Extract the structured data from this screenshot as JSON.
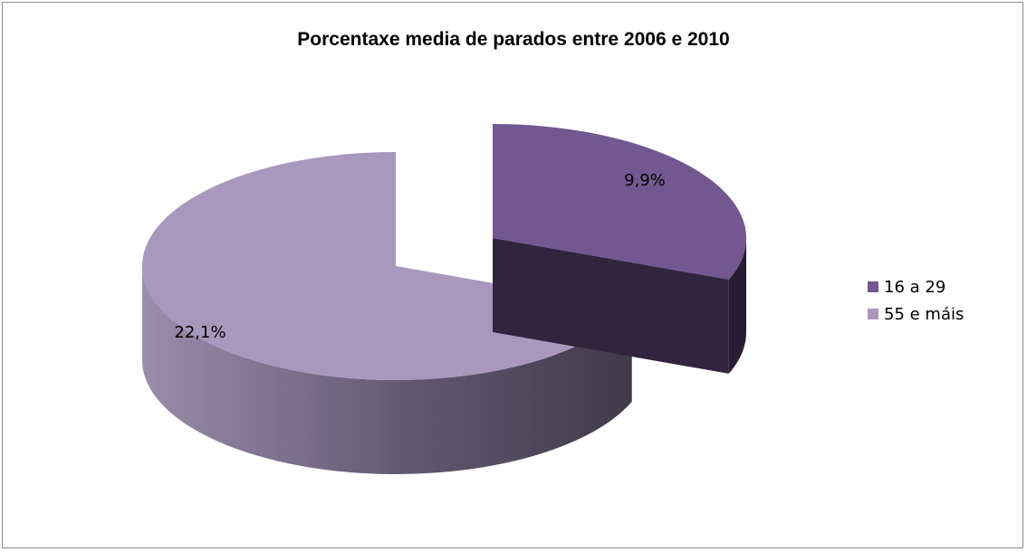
{
  "chart_data": {
    "type": "pie",
    "title": "Porcentaxe media de parados entre 2006 e 2010",
    "categories": [
      "16 a 29",
      "55 e máis"
    ],
    "values": [
      9.9,
      22.1
    ],
    "data_labels": [
      "9,9%",
      "22,1%"
    ],
    "colors": [
      "#735791",
      "#a898be"
    ],
    "style": "3d-exploded",
    "legend_position": "right"
  }
}
